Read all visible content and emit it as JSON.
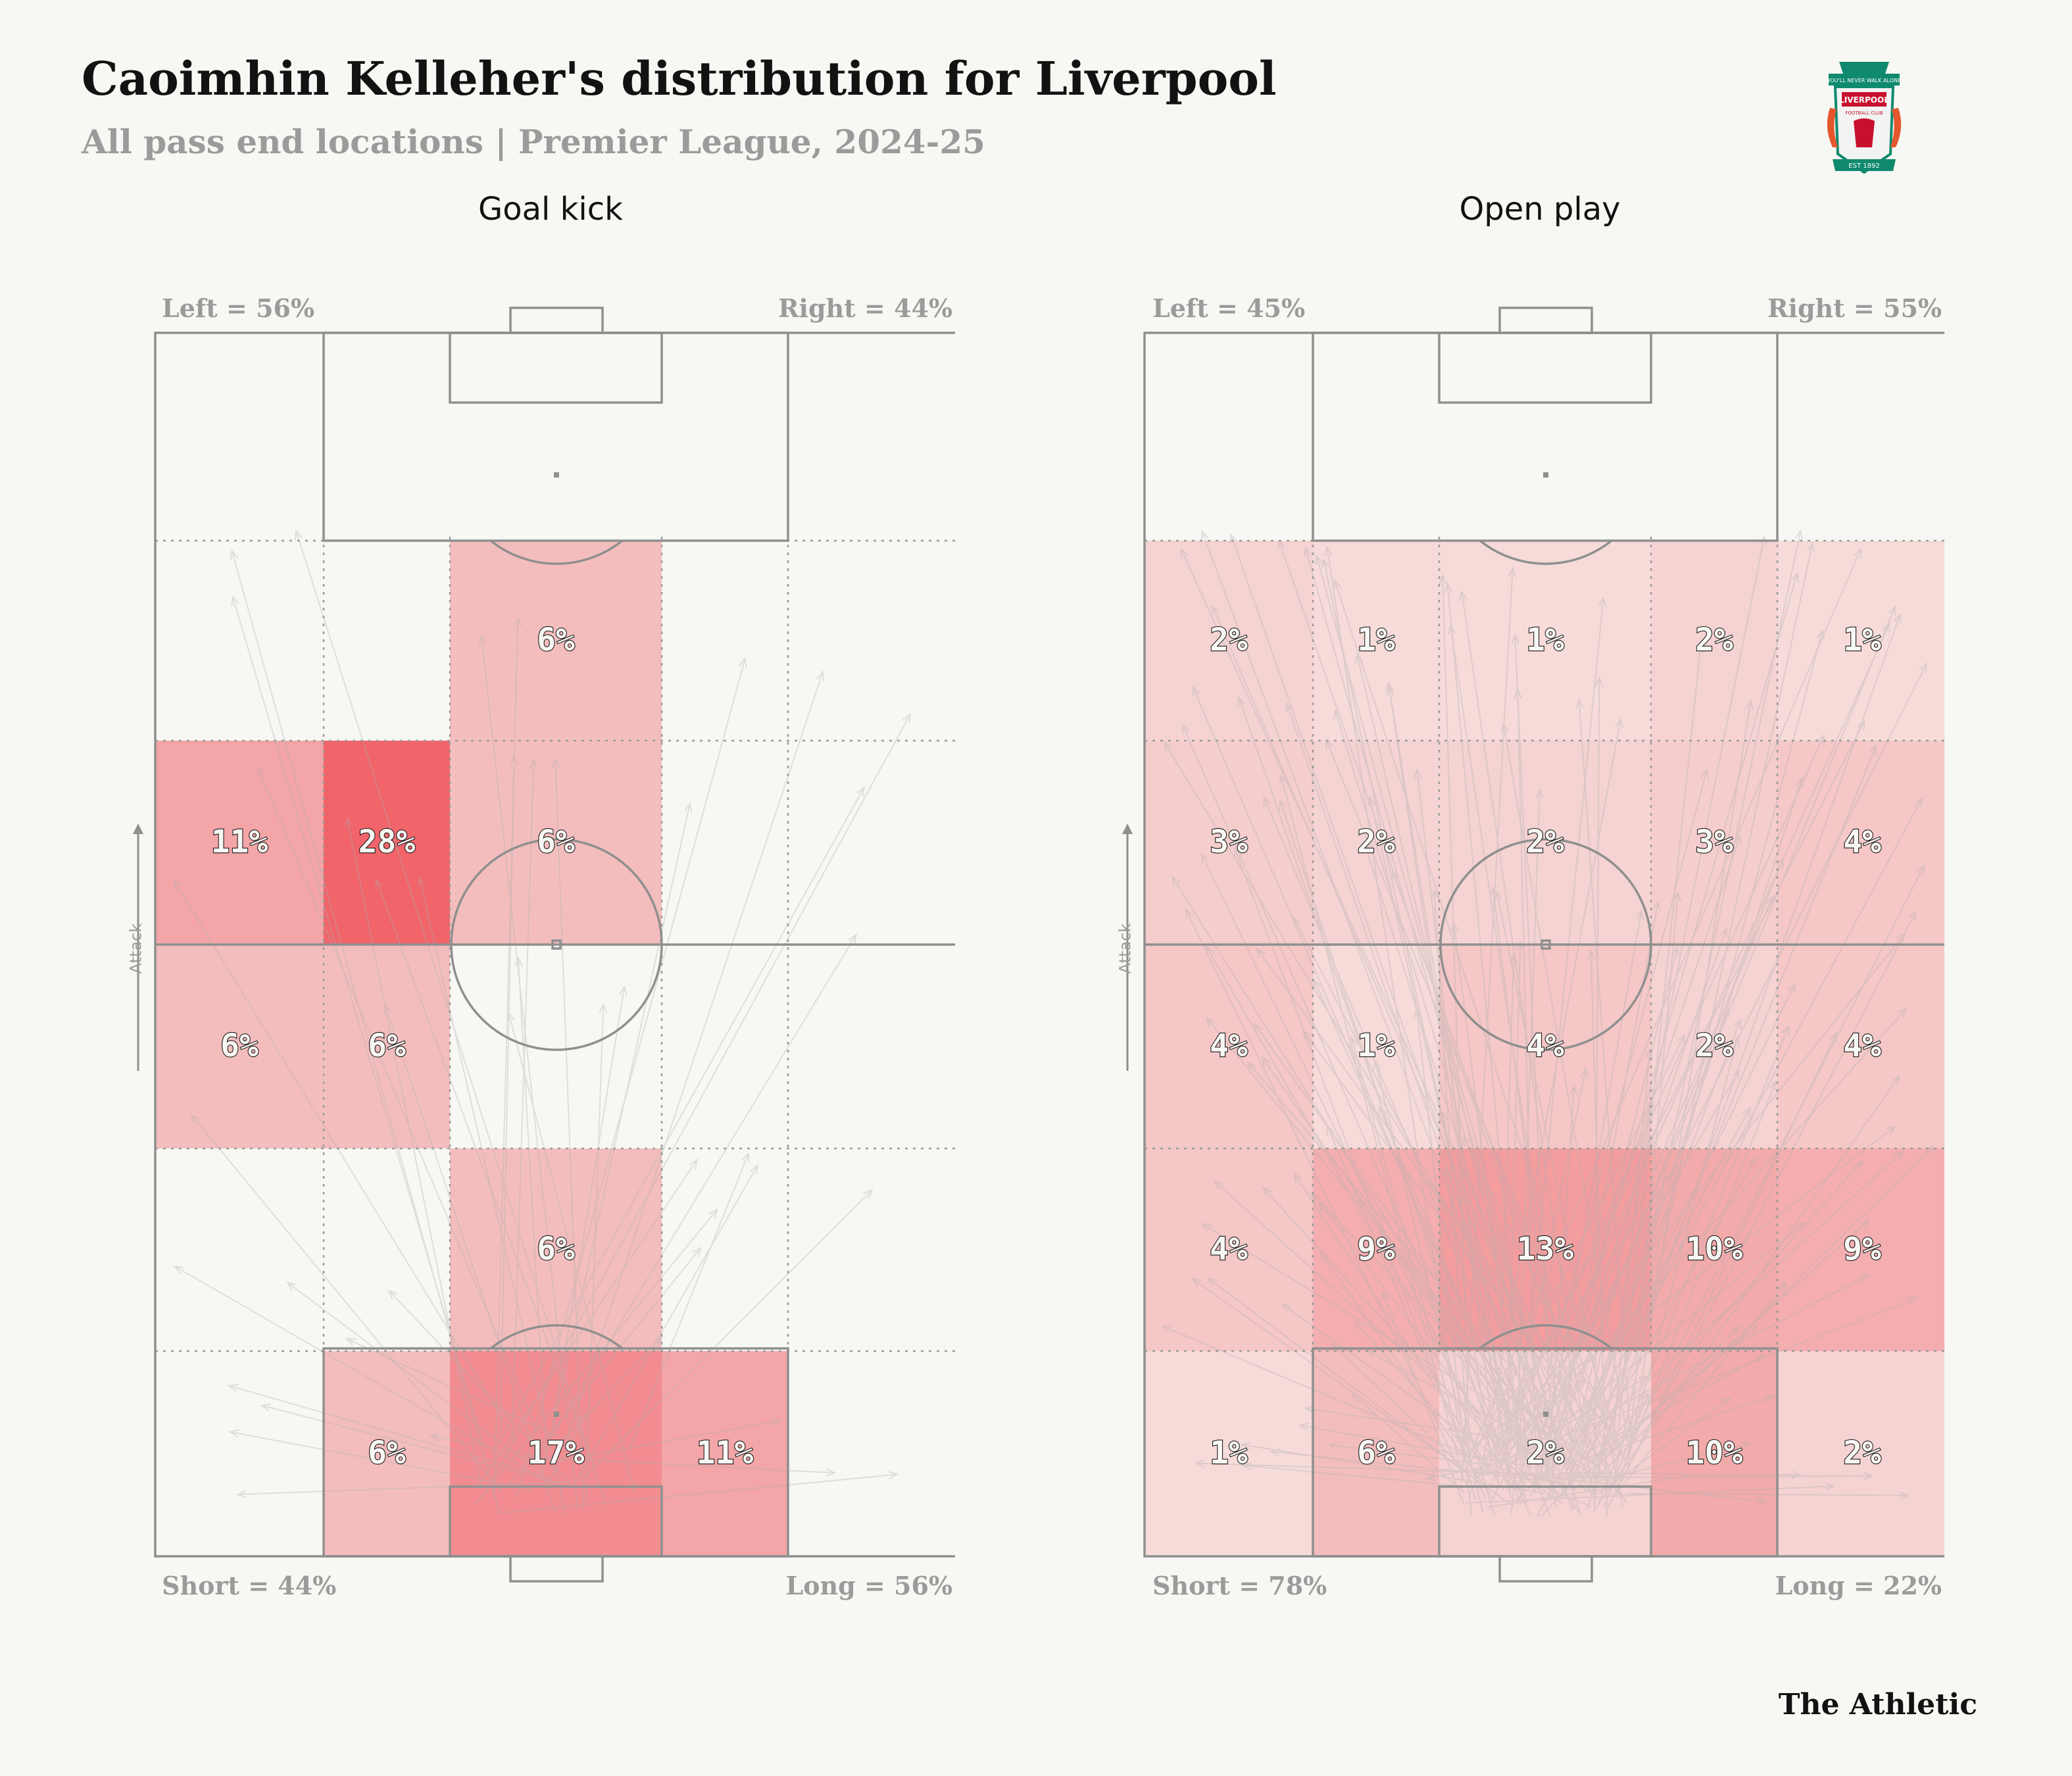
{
  "header": {
    "title": "Caoimhin Kelleher's distribution for Liverpool",
    "subtitle": "All pass end locations | Premier League, 2024-25"
  },
  "logo": {
    "icon": "liverpool-crest-icon",
    "banner_text": "YOU'LL NEVER WALK ALONE",
    "club_text": "LIVERPOOL",
    "sub_text": "FOOTBALL CLUB",
    "est_text": "EST 1892"
  },
  "brand": {
    "label": "The Athletic"
  },
  "attack_label": "Attack",
  "colors": {
    "background": "#f7f7f3",
    "line": "#8f8f8f",
    "heat_low": "#fbe9e4",
    "heat_high": "#f0646a",
    "arrow": "#b0b0b0"
  },
  "chart_data": [
    {
      "type": "heatmap",
      "title": "Goal kick",
      "left_label": "Left = 56%",
      "right_label": "Right = 44%",
      "short_label": "Short = 44%",
      "long_label": "Long = 56%",
      "rows_top_to_bottom": 5,
      "columns_left_to_right": 5,
      "cells": [
        [
          null,
          null,
          null,
          null,
          null
        ],
        [
          null,
          null,
          6,
          null,
          null
        ],
        [
          11,
          28,
          6,
          null,
          null
        ],
        [
          6,
          6,
          null,
          null,
          null
        ],
        [
          null,
          null,
          6,
          null,
          null
        ],
        [
          null,
          6,
          17,
          11,
          null
        ]
      ],
      "row_note": "first row is the attacking penalty-box row (no values shown)"
    },
    {
      "type": "heatmap",
      "title": "Open play",
      "left_label": "Left = 45%",
      "right_label": "Right = 55%",
      "short_label": "Short = 78%",
      "long_label": "Long = 22%",
      "rows_top_to_bottom": 5,
      "columns_left_to_right": 5,
      "cells": [
        [
          null,
          null,
          null,
          null,
          null
        ],
        [
          2,
          1,
          1,
          2,
          1
        ],
        [
          3,
          2,
          2,
          3,
          4
        ],
        [
          4,
          1,
          4,
          2,
          4
        ],
        [
          4,
          9,
          13,
          10,
          9
        ],
        [
          1,
          6,
          2,
          10,
          2
        ]
      ],
      "row_note": "first row is the attacking penalty-box row (no values shown)"
    }
  ]
}
